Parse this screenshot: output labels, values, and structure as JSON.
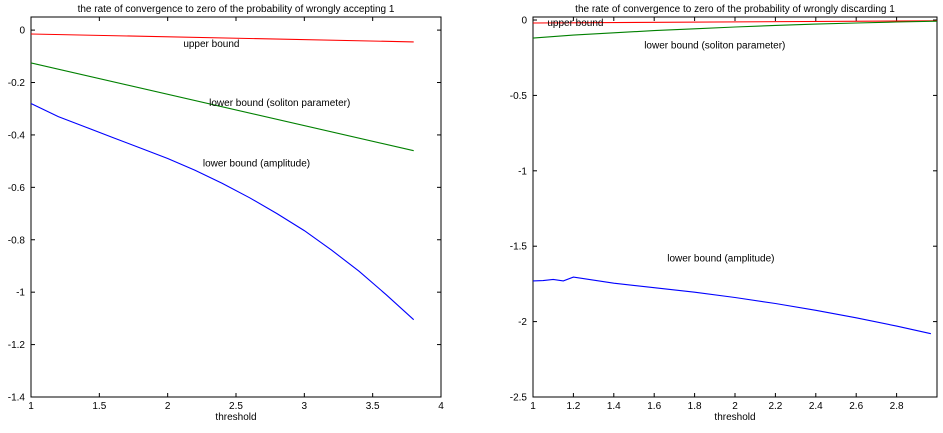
{
  "chart_data": [
    {
      "type": "line",
      "title": "the rate of convergence to zero of the probability of wrongly accepting 1",
      "xlabel": "threshold",
      "ylabel": "",
      "xlim": [
        1,
        4
      ],
      "ylim": [
        -1.4,
        0.05
      ],
      "xticks": [
        1,
        1.5,
        2,
        2.5,
        3,
        3.5,
        4
      ],
      "xtick_labels": [
        "1",
        "1.5",
        "2",
        "2.5",
        "3",
        "3.5",
        "4"
      ],
      "yticks": [
        0,
        -0.2,
        -0.4,
        -0.6,
        -0.8,
        -1,
        -1.2,
        -1.4
      ],
      "ytick_labels": [
        "0",
        "-0.2",
        "-0.4",
        "-0.6",
        "-0.8",
        "-1",
        "-1.2",
        "-1.4"
      ],
      "grid": false,
      "series": [
        {
          "color": "#ff0000",
          "x": [
            1.0,
            3.8
          ],
          "y": [
            -0.015,
            -0.045
          ]
        },
        {
          "color": "#008000",
          "x": [
            1.0,
            3.8
          ],
          "y": [
            -0.125,
            -0.46
          ]
        },
        {
          "color": "#0000ff",
          "x": [
            1.0,
            1.2,
            1.4,
            1.6,
            1.8,
            2.0,
            2.2,
            2.4,
            2.6,
            2.8,
            3.0,
            3.2,
            3.4,
            3.6,
            3.8
          ],
          "y": [
            -0.28,
            -0.33,
            -0.37,
            -0.41,
            -0.45,
            -0.49,
            -0.535,
            -0.585,
            -0.64,
            -0.7,
            -0.765,
            -0.84,
            -0.92,
            -1.01,
            -1.105
          ]
        }
      ],
      "annotations": [
        {
          "text": "upper bound",
          "x": 2.32,
          "y": -0.065
        },
        {
          "text": "lower bound (soliton parameter)",
          "x": 2.82,
          "y": -0.29
        },
        {
          "text": "lower bound (amplitude)",
          "x": 2.65,
          "y": -0.52
        }
      ]
    },
    {
      "type": "line",
      "title": "the rate of convergence to zero of the probability of wrongly discarding 1",
      "xlabel": "threshold",
      "ylabel": "",
      "xlim": [
        1,
        3
      ],
      "ylim": [
        -2.5,
        0.02
      ],
      "xticks": [
        1,
        1.2,
        1.4,
        1.6,
        1.8,
        2,
        2.2,
        2.4,
        2.6,
        2.8
      ],
      "xtick_labels": [
        "1",
        "1.2",
        "1.4",
        "1.6",
        "1.8",
        "2",
        "2.2",
        "2.4",
        "2.6",
        "2.8"
      ],
      "yticks": [
        0,
        -0.5,
        -1,
        -1.5,
        -2,
        -2.5
      ],
      "ytick_labels": [
        "0",
        "-0.5",
        "-1",
        "-1.5",
        "-2",
        "-2.5"
      ],
      "grid": false,
      "series": [
        {
          "color": "#ff0000",
          "x": [
            1.0,
            3.0
          ],
          "y": [
            -0.02,
            -0.005
          ]
        },
        {
          "color": "#008000",
          "x": [
            1.0,
            1.2,
            1.4,
            1.6,
            1.8,
            2.0,
            2.2,
            2.4,
            2.6,
            2.8,
            3.0
          ],
          "y": [
            -0.12,
            -0.1,
            -0.085,
            -0.07,
            -0.058,
            -0.046,
            -0.036,
            -0.027,
            -0.02,
            -0.013,
            -0.008
          ]
        },
        {
          "color": "#0000ff",
          "x": [
            1.0,
            1.05,
            1.1,
            1.15,
            1.2,
            1.4,
            1.6,
            1.8,
            2.0,
            2.2,
            2.4,
            2.6,
            2.8,
            2.97
          ],
          "y": [
            -1.73,
            -1.728,
            -1.72,
            -1.73,
            -1.705,
            -1.745,
            -1.775,
            -1.805,
            -1.84,
            -1.88,
            -1.925,
            -1.975,
            -2.03,
            -2.08
          ]
        }
      ],
      "annotations": [
        {
          "text": "upper bound",
          "x": 1.21,
          "y": -0.04
        },
        {
          "text": "lower bound (soliton parameter)",
          "x": 1.9,
          "y": -0.19
        },
        {
          "text": "lower bound (amplitude)",
          "x": 1.93,
          "y": -1.6
        }
      ]
    }
  ]
}
